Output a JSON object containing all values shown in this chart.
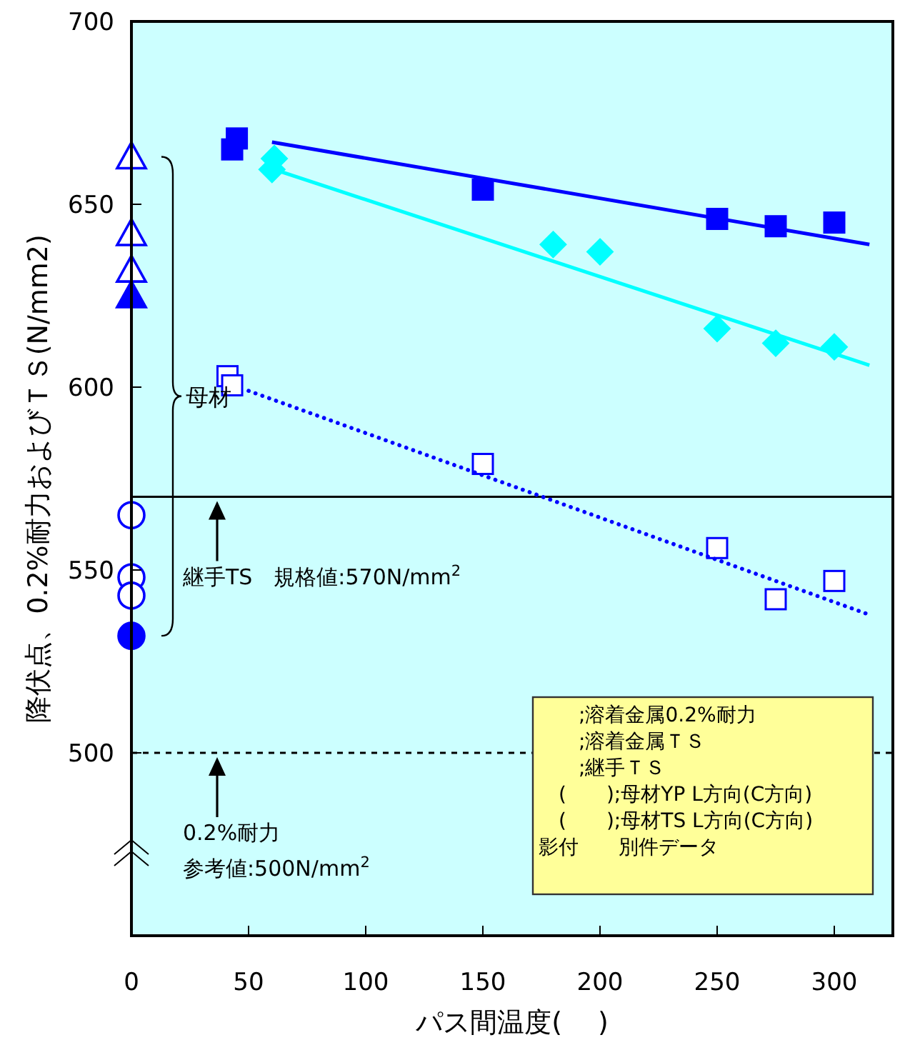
{
  "chart_data": {
    "type": "scatter",
    "xlabel": "パス間温度(　 )",
    "ylabel": "降伏点、0.2%耐力およびＴＳ(N/mm2)",
    "xlim": [
      0,
      325
    ],
    "ylim": [
      450,
      700
    ],
    "xticks": [
      0,
      50,
      100,
      150,
      200,
      250,
      300
    ],
    "yticks": [
      500,
      550,
      600,
      650,
      700
    ],
    "grid": false,
    "series": [
      {
        "marker": "square",
        "color": "#0000ff",
        "colors": [
          "#0000ff",
          "#0000ff",
          "#0000ff",
          "#0000ff",
          "#0000ff",
          "#0000ff"
        ],
        "x": [
          43,
          45,
          150,
          250,
          275,
          300
        ],
        "values": [
          665,
          668,
          654,
          646,
          644,
          645
        ]
      },
      {
        "type": "line",
        "line_style": "solid",
        "color": "#0000ff",
        "x": [
          60,
          315
        ],
        "values": [
          667,
          639
        ]
      },
      {
        "marker": "diamond",
        "color": "#00ffff",
        "colors": [
          "#00ffff",
          "#00ffff",
          "#00ffff",
          "#00ffff",
          "#00ffff",
          "#00ffff",
          "#00ffff"
        ],
        "x": [
          61,
          60,
          180,
          200,
          250,
          275,
          300
        ],
        "values": [
          662.5,
          659.5,
          639,
          637,
          616,
          612,
          611
        ]
      },
      {
        "type": "line",
        "line_style": "solid",
        "color": "#00ffff",
        "x": [
          61,
          315
        ],
        "values": [
          659.5,
          606
        ]
      },
      {
        "marker": "square",
        "color": "#0000ff",
        "colors": [
          "#ffffff",
          "#ffffff",
          "#ffffff",
          "#ffffff",
          "#ffffff",
          "#ffffff"
        ],
        "x": [
          41,
          43,
          150,
          250,
          275,
          300
        ],
        "values": [
          603,
          600.5,
          579,
          556,
          542,
          547
        ]
      },
      {
        "type": "line",
        "line_style": "dotted",
        "color": "#0000ff",
        "x": [
          50,
          314
        ],
        "values": [
          599,
          538
        ]
      },
      {
        "marker": "triangle",
        "color": "#0000ff",
        "colors": [
          "#ffffff",
          "#ffffff",
          "#ffffff",
          "#0000ff"
        ],
        "x": [
          0,
          0,
          0,
          0
        ],
        "values": [
          663,
          642,
          632,
          625
        ]
      },
      {
        "marker": "circle",
        "color": "#0000ff",
        "colors": [
          "#ffffff",
          "#ffffff",
          "#ffffff",
          "#0000ff"
        ],
        "x": [
          0,
          0,
          0,
          0
        ],
        "values": [
          565,
          548,
          543,
          532
        ]
      }
    ],
    "ref_lines": [
      {
        "axis": "y",
        "value": 570,
        "line_style": "solid",
        "color": "#000000"
      },
      {
        "axis": "y",
        "value": 500,
        "line_style": "dashed",
        "color": "#000000"
      }
    ],
    "annotations": [
      "母材",
      "継手TS　規格値:570N/mm$^{2}$",
      "0.2%耐力",
      "参考値:500N/mm$^{2}$",
      "　　;溶着金属0.2%耐力",
      "　　;溶着金属ＴＳ",
      "　　;継手ＴＳ",
      "　(　　);母材YP L方向(C方向)",
      "　(　　);母材TS L方向(C方向)",
      "影付　　別件データ"
    ]
  }
}
